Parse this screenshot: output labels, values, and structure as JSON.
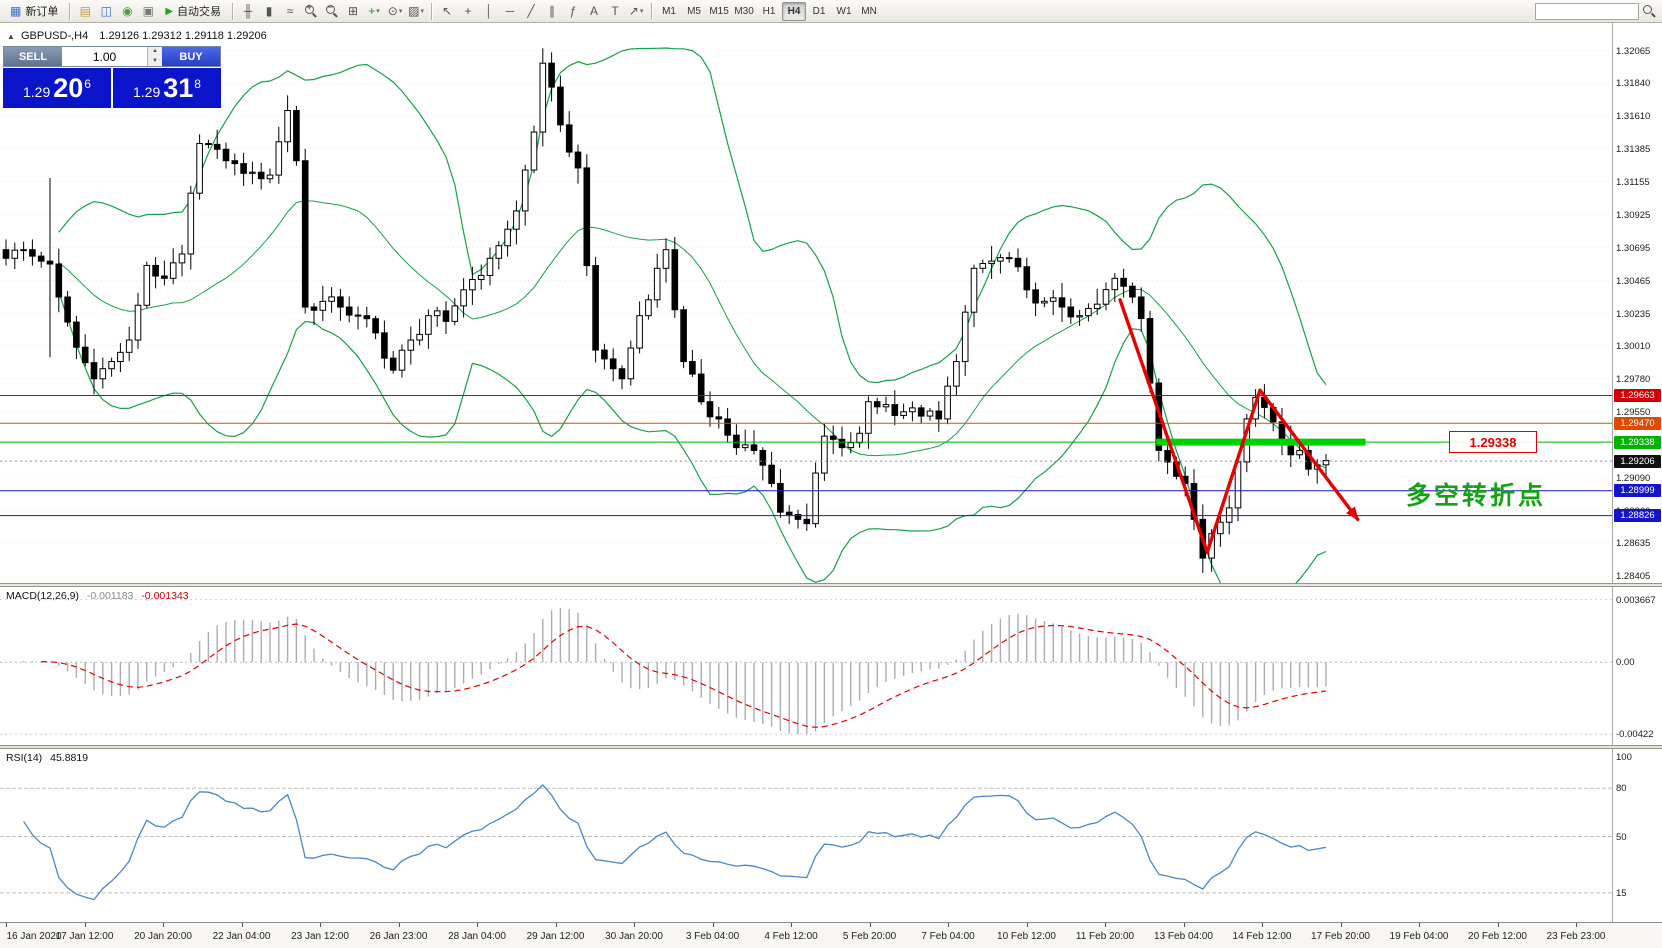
{
  "toolbar": {
    "new_order": "新订单",
    "autotrade": "自动交易",
    "window_icons": [
      {
        "name": "charts-profile-icon",
        "glyph": "▤",
        "color": "#c79c2e"
      },
      {
        "name": "market-watch-icon",
        "glyph": "◫",
        "color": "#3a6ec0"
      },
      {
        "name": "navigator-icon",
        "glyph": "◉",
        "color": "#4e9a3c"
      },
      {
        "name": "terminal-icon",
        "glyph": "▣",
        "color": "#777777"
      }
    ],
    "chart_icons": [
      {
        "name": "bar-chart-icon",
        "glyph": "╫"
      },
      {
        "name": "candlestick-chart-icon",
        "glyph": "▮"
      },
      {
        "name": "line-chart-icon",
        "glyph": "≈"
      },
      {
        "name": "zoom-in-icon",
        "mag": "+"
      },
      {
        "name": "zoom-out-icon",
        "mag": "−"
      },
      {
        "name": "tile-windows-icon",
        "glyph": "⊞"
      },
      {
        "name": "indicators-icon",
        "glyph": "+",
        "color": "#1a9e1a",
        "caret": true
      },
      {
        "name": "periods-icon",
        "glyph": "⊙",
        "caret": true
      },
      {
        "name": "templates-icon",
        "glyph": "▨",
        "caret": true
      }
    ],
    "draw_icons": [
      {
        "name": "cursor-icon",
        "glyph": "↖"
      },
      {
        "name": "crosshair-icon",
        "glyph": "+"
      },
      {
        "name": "vertical-line-icon",
        "glyph": "│"
      },
      {
        "name": "horizontal-line-icon",
        "glyph": "─"
      },
      {
        "name": "trendline-icon",
        "glyph": "╱"
      },
      {
        "name": "channel-icon",
        "glyph": "∥"
      },
      {
        "name": "fibonacci-icon",
        "glyph": "ƒ"
      },
      {
        "name": "text-icon",
        "glyph": "A"
      },
      {
        "name": "label-icon",
        "glyph": "T"
      },
      {
        "name": "arrows-icon",
        "glyph": "↗",
        "caret": true
      }
    ],
    "timeframes": [
      "M1",
      "M5",
      "M15",
      "M30",
      "H1",
      "H4",
      "D1",
      "W1",
      "MN"
    ],
    "active_timeframe": "H4",
    "search_placeholder": ""
  },
  "quote": {
    "symbol_label": "GBPUSD-,H4",
    "ohlc": "1.29126 1.29312 1.29118 1.29206",
    "sell_label": "SELL",
    "buy_label": "BUY",
    "volume": "1.00",
    "sell_small": "1.29",
    "sell_big": "20",
    "sell_sup": "6",
    "buy_small": "1.29",
    "buy_big": "31",
    "buy_sup": "8"
  },
  "chart_data": {
    "type": "candlestick",
    "symbol": "GBPUSD",
    "timeframe": "H4",
    "price_max": 1.32065,
    "price_min": 1.28405,
    "price_axis": [
      "1.32065",
      "1.31840",
      "1.31610",
      "1.31385",
      "1.31155",
      "1.30925",
      "1.30695",
      "1.30465",
      "1.30235",
      "1.30010",
      "1.29780",
      "1.29550",
      "1.29320",
      "1.29090",
      "1.28860",
      "1.28635",
      "1.28405"
    ],
    "anchors": [
      [
        0,
        1.3062
      ],
      [
        2,
        1.3068
      ],
      [
        4,
        1.306
      ],
      [
        5,
        1.3058
      ],
      [
        6,
        1.3035
      ],
      [
        8,
        1.3
      ],
      [
        10,
        1.2978
      ],
      [
        12,
        1.299
      ],
      [
        14,
        1.3005
      ],
      [
        16,
        1.3057
      ],
      [
        18,
        1.3048
      ],
      [
        20,
        1.3065
      ],
      [
        22,
        1.3142
      ],
      [
        24,
        1.3138
      ],
      [
        26,
        1.3128
      ],
      [
        28,
        1.3122
      ],
      [
        30,
        1.312
      ],
      [
        32,
        1.3165
      ],
      [
        33,
        1.313
      ],
      [
        34,
        1.3028
      ],
      [
        36,
        1.3032
      ],
      [
        38,
        1.3028
      ],
      [
        40,
        1.3022
      ],
      [
        42,
        1.301
      ],
      [
        44,
        1.2984
      ],
      [
        46,
        1.3005
      ],
      [
        48,
        1.3022
      ],
      [
        50,
        1.3018
      ],
      [
        52,
        1.304
      ],
      [
        55,
        1.3062
      ],
      [
        58,
        1.3095
      ],
      [
        60,
        1.315
      ],
      [
        61,
        1.3198
      ],
      [
        63,
        1.3155
      ],
      [
        65,
        1.3125
      ],
      [
        67,
        1.2998
      ],
      [
        69,
        1.2985
      ],
      [
        70,
        1.2978
      ],
      [
        72,
        1.3022
      ],
      [
        74,
        1.3055
      ],
      [
        75,
        1.3068
      ],
      [
        77,
        1.299
      ],
      [
        79,
        1.2962
      ],
      [
        81,
        1.295
      ],
      [
        83,
        1.293
      ],
      [
        85,
        1.2928
      ],
      [
        87,
        1.2905
      ],
      [
        88,
        1.2885
      ],
      [
        90,
        1.288
      ],
      [
        91,
        1.2877
      ],
      [
        93,
        1.2938
      ],
      [
        95,
        1.293
      ],
      [
        97,
        1.294
      ],
      [
        98,
        1.2962
      ],
      [
        100,
        1.296
      ],
      [
        102,
        1.2955
      ],
      [
        104,
        1.2952
      ],
      [
        106,
        1.295
      ],
      [
        108,
        1.299
      ],
      [
        110,
        1.3055
      ],
      [
        112,
        1.306
      ],
      [
        114,
        1.3062
      ],
      [
        116,
        1.304
      ],
      [
        118,
        1.3032
      ],
      [
        120,
        1.3028
      ],
      [
        122,
        1.3022
      ],
      [
        124,
        1.303
      ],
      [
        126,
        1.3048
      ],
      [
        128,
        1.3035
      ],
      [
        129,
        1.302
      ],
      [
        130,
        1.2975
      ],
      [
        131,
        1.2928
      ],
      [
        132,
        1.292
      ],
      [
        133,
        1.291
      ],
      [
        134,
        1.2905
      ],
      [
        135,
        1.288
      ],
      [
        136,
        1.2853
      ],
      [
        137,
        1.287
      ],
      [
        138,
        1.2878
      ],
      [
        139,
        1.2888
      ],
      [
        140,
        1.292
      ],
      [
        141,
        1.295
      ],
      [
        142,
        1.2965
      ],
      [
        143,
        1.2958
      ],
      [
        144,
        1.2948
      ],
      [
        145,
        1.2935
      ],
      [
        146,
        1.2925
      ],
      [
        147,
        1.2928
      ],
      [
        148,
        1.2915
      ],
      [
        149,
        1.2918
      ],
      [
        150,
        1.2921
      ]
    ],
    "wick_overrides": {
      "5": [
        1.3118,
        1.2993
      ],
      "61": [
        1.32055,
        1.314
      ],
      "136": [
        1.2872,
        1.2845
      ]
    },
    "bollinger": {
      "period": 20,
      "deviation": 2
    },
    "levels": [
      {
        "price": 1.29663,
        "label": "1.29663",
        "color": "#d40000"
      },
      {
        "price": 1.2947,
        "label": "1.29470",
        "color": "#e04a00"
      },
      {
        "price": 1.29338,
        "label": "1.29338",
        "color": "#00b400"
      },
      {
        "price": 1.28999,
        "label": "1.28999",
        "color": "#1414cc"
      },
      {
        "price": 1.28826,
        "label": "1.28826",
        "color": "#1414cc"
      }
    ],
    "current_price": {
      "price": 1.29206,
      "label": "1.29206",
      "color": "#101010"
    },
    "annotations": {
      "zigzag": [
        [
          126.6,
          1.3033
        ],
        [
          136.5,
          1.2857
        ],
        [
          142.5,
          1.297
        ],
        [
          153.6,
          1.288
        ]
      ],
      "green_segment": {
        "i1": 130.7,
        "i2": 154.5,
        "price": 1.29338
      },
      "callout_text": "1.29338",
      "cn_text": "多空转折点"
    },
    "macd": {
      "label_name": "MACD(12,26,9)",
      "value_main": "-0.001183",
      "value_signal": "-0.001343",
      "fast": 12,
      "slow": 26,
      "signal": 9,
      "axis": [
        "0.003667",
        "0.00",
        "-0.00422"
      ],
      "max": 0.003667,
      "min": -0.00422
    },
    "rsi": {
      "label_name": "RSI(14)",
      "value": "45.8819",
      "period": 14,
      "axis": [
        "100",
        "80",
        "50",
        "15"
      ],
      "levels": [
        80,
        50,
        15
      ]
    },
    "time_axis": [
      "16 Jan 2020",
      "17 Jan 12:00",
      "20 Jan 20:00",
      "22 Jan 04:00",
      "23 Jan 12:00",
      "26 Jan 23:00",
      "28 Jan 04:00",
      "29 Jan 12:00",
      "30 Jan 20:00",
      "3 Feb 04:00",
      "4 Feb 12:00",
      "5 Feb 20:00",
      "7 Feb 04:00",
      "10 Feb 12:00",
      "11 Feb 20:00",
      "13 Feb 04:00",
      "14 Feb 12:00",
      "17 Feb 20:00",
      "19 Feb 04:00",
      "20 Feb 12:00",
      "23 Feb 23:00"
    ],
    "colors": {
      "bollinger": "#18a048",
      "histogram": "#adadad",
      "macd_signal": "#e80000",
      "rsi_line": "#4a86c8",
      "annotation_red": "#e80000",
      "annotation_green": "#00d200"
    }
  }
}
